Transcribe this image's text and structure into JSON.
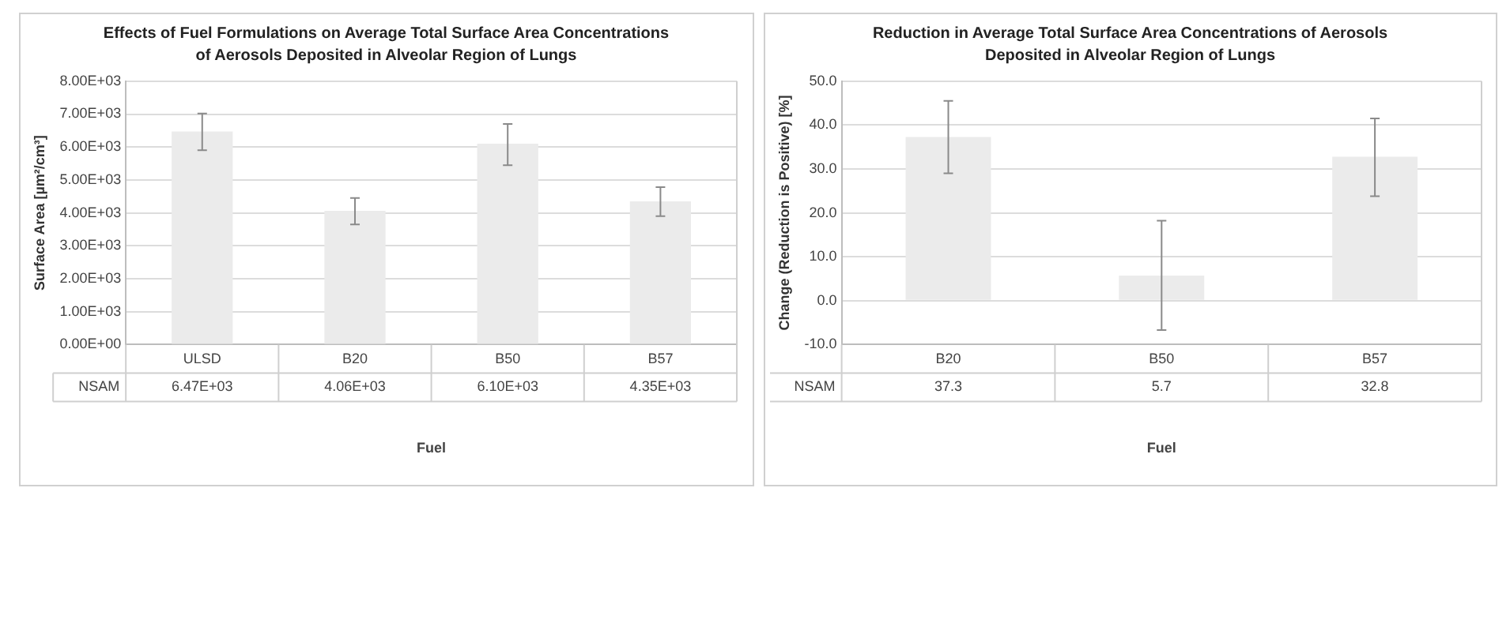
{
  "chart_data": [
    {
      "type": "bar",
      "title": "Effects of Fuel Formulations on Average Total Surface Area Concentrations of Aerosols Deposited in Alveolar Region of Lungs",
      "xlabel": "Fuel",
      "ylabel": "Surface Area [µm²/cm³]",
      "categories": [
        "ULSD",
        "B20",
        "B50",
        "B57"
      ],
      "series": [
        {
          "name": "NSAM",
          "color": "#ebebeb",
          "values": [
            6470,
            4060,
            6100,
            4350
          ],
          "value_labels": [
            "6.47E+03",
            "4.06E+03",
            "6.10E+03",
            "4.35E+03"
          ],
          "errors": [
            [
              5900,
              7020
            ],
            [
              3650,
              4450
            ],
            [
              5450,
              6700
            ],
            [
              3900,
              4780
            ]
          ]
        }
      ],
      "ylim": [
        0,
        8000
      ],
      "yticks": [
        {
          "value": 0,
          "label": "0.00E+00"
        },
        {
          "value": 1000,
          "label": "1.00E+03"
        },
        {
          "value": 2000,
          "label": "2.00E+03"
        },
        {
          "value": 3000,
          "label": "3.00E+03"
        },
        {
          "value": 4000,
          "label": "4.00E+03"
        },
        {
          "value": 5000,
          "label": "5.00E+03"
        },
        {
          "value": 6000,
          "label": "6.00E+03"
        },
        {
          "value": 7000,
          "label": "7.00E+03"
        },
        {
          "value": 8000,
          "label": "8.00E+03"
        }
      ],
      "grid": "y"
    },
    {
      "type": "bar",
      "title": "Reduction in Average Total Surface Area Concentrations of Aerosols Deposited in Alveolar Region of Lungs",
      "xlabel": "Fuel",
      "ylabel": "Change (Reduction is Positive) [%]",
      "categories": [
        "B20",
        "B50",
        "B57"
      ],
      "series": [
        {
          "name": "NSAM",
          "color": "#ebebeb",
          "values": [
            37.3,
            5.7,
            32.8
          ],
          "value_labels": [
            "37.3",
            "5.7",
            "32.8"
          ],
          "errors": [
            [
              29,
              45.5
            ],
            [
              -6.7,
              18.2
            ],
            [
              23.8,
              41.5
            ]
          ]
        }
      ],
      "ylim": [
        -10,
        50
      ],
      "yticks": [
        {
          "value": -10,
          "label": "-10.0"
        },
        {
          "value": 0,
          "label": "0.0"
        },
        {
          "value": 10,
          "label": "10.0"
        },
        {
          "value": 20,
          "label": "20.0"
        },
        {
          "value": 30,
          "label": "30.0"
        },
        {
          "value": 40,
          "label": "40.0"
        },
        {
          "value": 50,
          "label": "50.0"
        }
      ],
      "grid": "y"
    }
  ]
}
